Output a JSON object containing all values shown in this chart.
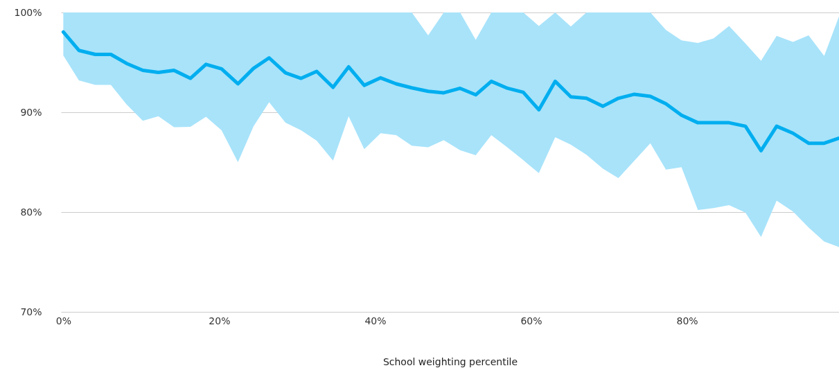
{
  "chart_data": {
    "type": "line",
    "xlabel": "School weighting percentile",
    "x": [
      0,
      2,
      4.1,
      6.1,
      8.1,
      10.2,
      12.2,
      14.2,
      16.3,
      18.3,
      20.3,
      22.4,
      24.4,
      26.4,
      28.5,
      30.5,
      32.5,
      34.6,
      36.6,
      38.6,
      40.7,
      42.7,
      44.7,
      46.8,
      48.8,
      50.9,
      52.9,
      54.9,
      57,
      59,
      61,
      63.1,
      65.1,
      67.1,
      69.2,
      71.2,
      73.2,
      75.3,
      77.3,
      79.3,
      81.4,
      83.4,
      85.4,
      87.5,
      89.5,
      91.5,
      93.6,
      95.6,
      97.6,
      99.5
    ],
    "series": [
      {
        "color": "#00aeef",
        "values": [
          98.05,
          96.2,
          95.8,
          95.8,
          94.9,
          94.2,
          94.0,
          94.2,
          93.4,
          94.8,
          94.35,
          92.85,
          94.4,
          95.45,
          93.95,
          93.4,
          94.1,
          92.5,
          94.55,
          92.7,
          93.45,
          92.85,
          92.45,
          92.1,
          91.95,
          92.4,
          91.75,
          93.1,
          92.4,
          92.0,
          90.25,
          93.1,
          91.55,
          91.4,
          90.6,
          91.4,
          91.8,
          91.6,
          90.85,
          89.7,
          88.95,
          88.95,
          88.95,
          88.6,
          86.15,
          88.6,
          87.9,
          86.9,
          86.9,
          87.4
        ],
        "lower": [
          95.7,
          93.2,
          92.75,
          92.75,
          90.8,
          89.15,
          89.6,
          88.5,
          88.55,
          89.55,
          88.2,
          85.0,
          88.6,
          91.0,
          88.95,
          88.2,
          87.15,
          85.15,
          89.6,
          86.3,
          87.9,
          87.7,
          86.65,
          86.5,
          87.2,
          86.2,
          85.7,
          87.7,
          86.45,
          85.2,
          83.9,
          87.5,
          86.75,
          85.75,
          84.35,
          83.4,
          85.1,
          86.9,
          84.25,
          84.5,
          80.2,
          80.4,
          80.7,
          79.95,
          77.5,
          81.15,
          80.05,
          78.45,
          77.05,
          76.5
        ],
        "upper": [
          100,
          100,
          100,
          100,
          100,
          100,
          100,
          100,
          100,
          100,
          100,
          100,
          100,
          100,
          100,
          100,
          100,
          100,
          100,
          100,
          100,
          100,
          100,
          97.7,
          100,
          100,
          97.25,
          100,
          100,
          100,
          98.65,
          100,
          98.6,
          100,
          100,
          100,
          100,
          100,
          98.25,
          97.2,
          96.95,
          97.4,
          98.65,
          96.9,
          95.15,
          97.65,
          97.05,
          97.7,
          95.65,
          99.6
        ]
      }
    ],
    "xlim": [
      -0.3,
      99.5
    ],
    "ylim": [
      70,
      100
    ],
    "xticks": [
      {
        "value": 0,
        "label": "0%"
      },
      {
        "value": 20,
        "label": "20%"
      },
      {
        "value": 40,
        "label": "40%"
      },
      {
        "value": 60,
        "label": "60%"
      },
      {
        "value": 80,
        "label": "80%"
      }
    ],
    "yticks": [
      {
        "value": 70,
        "label": "70%"
      },
      {
        "value": 80,
        "label": "80%"
      },
      {
        "value": 90,
        "label": "90%"
      },
      {
        "value": 100,
        "label": "100%"
      }
    ],
    "grid": "y",
    "line_style": "solid"
  }
}
